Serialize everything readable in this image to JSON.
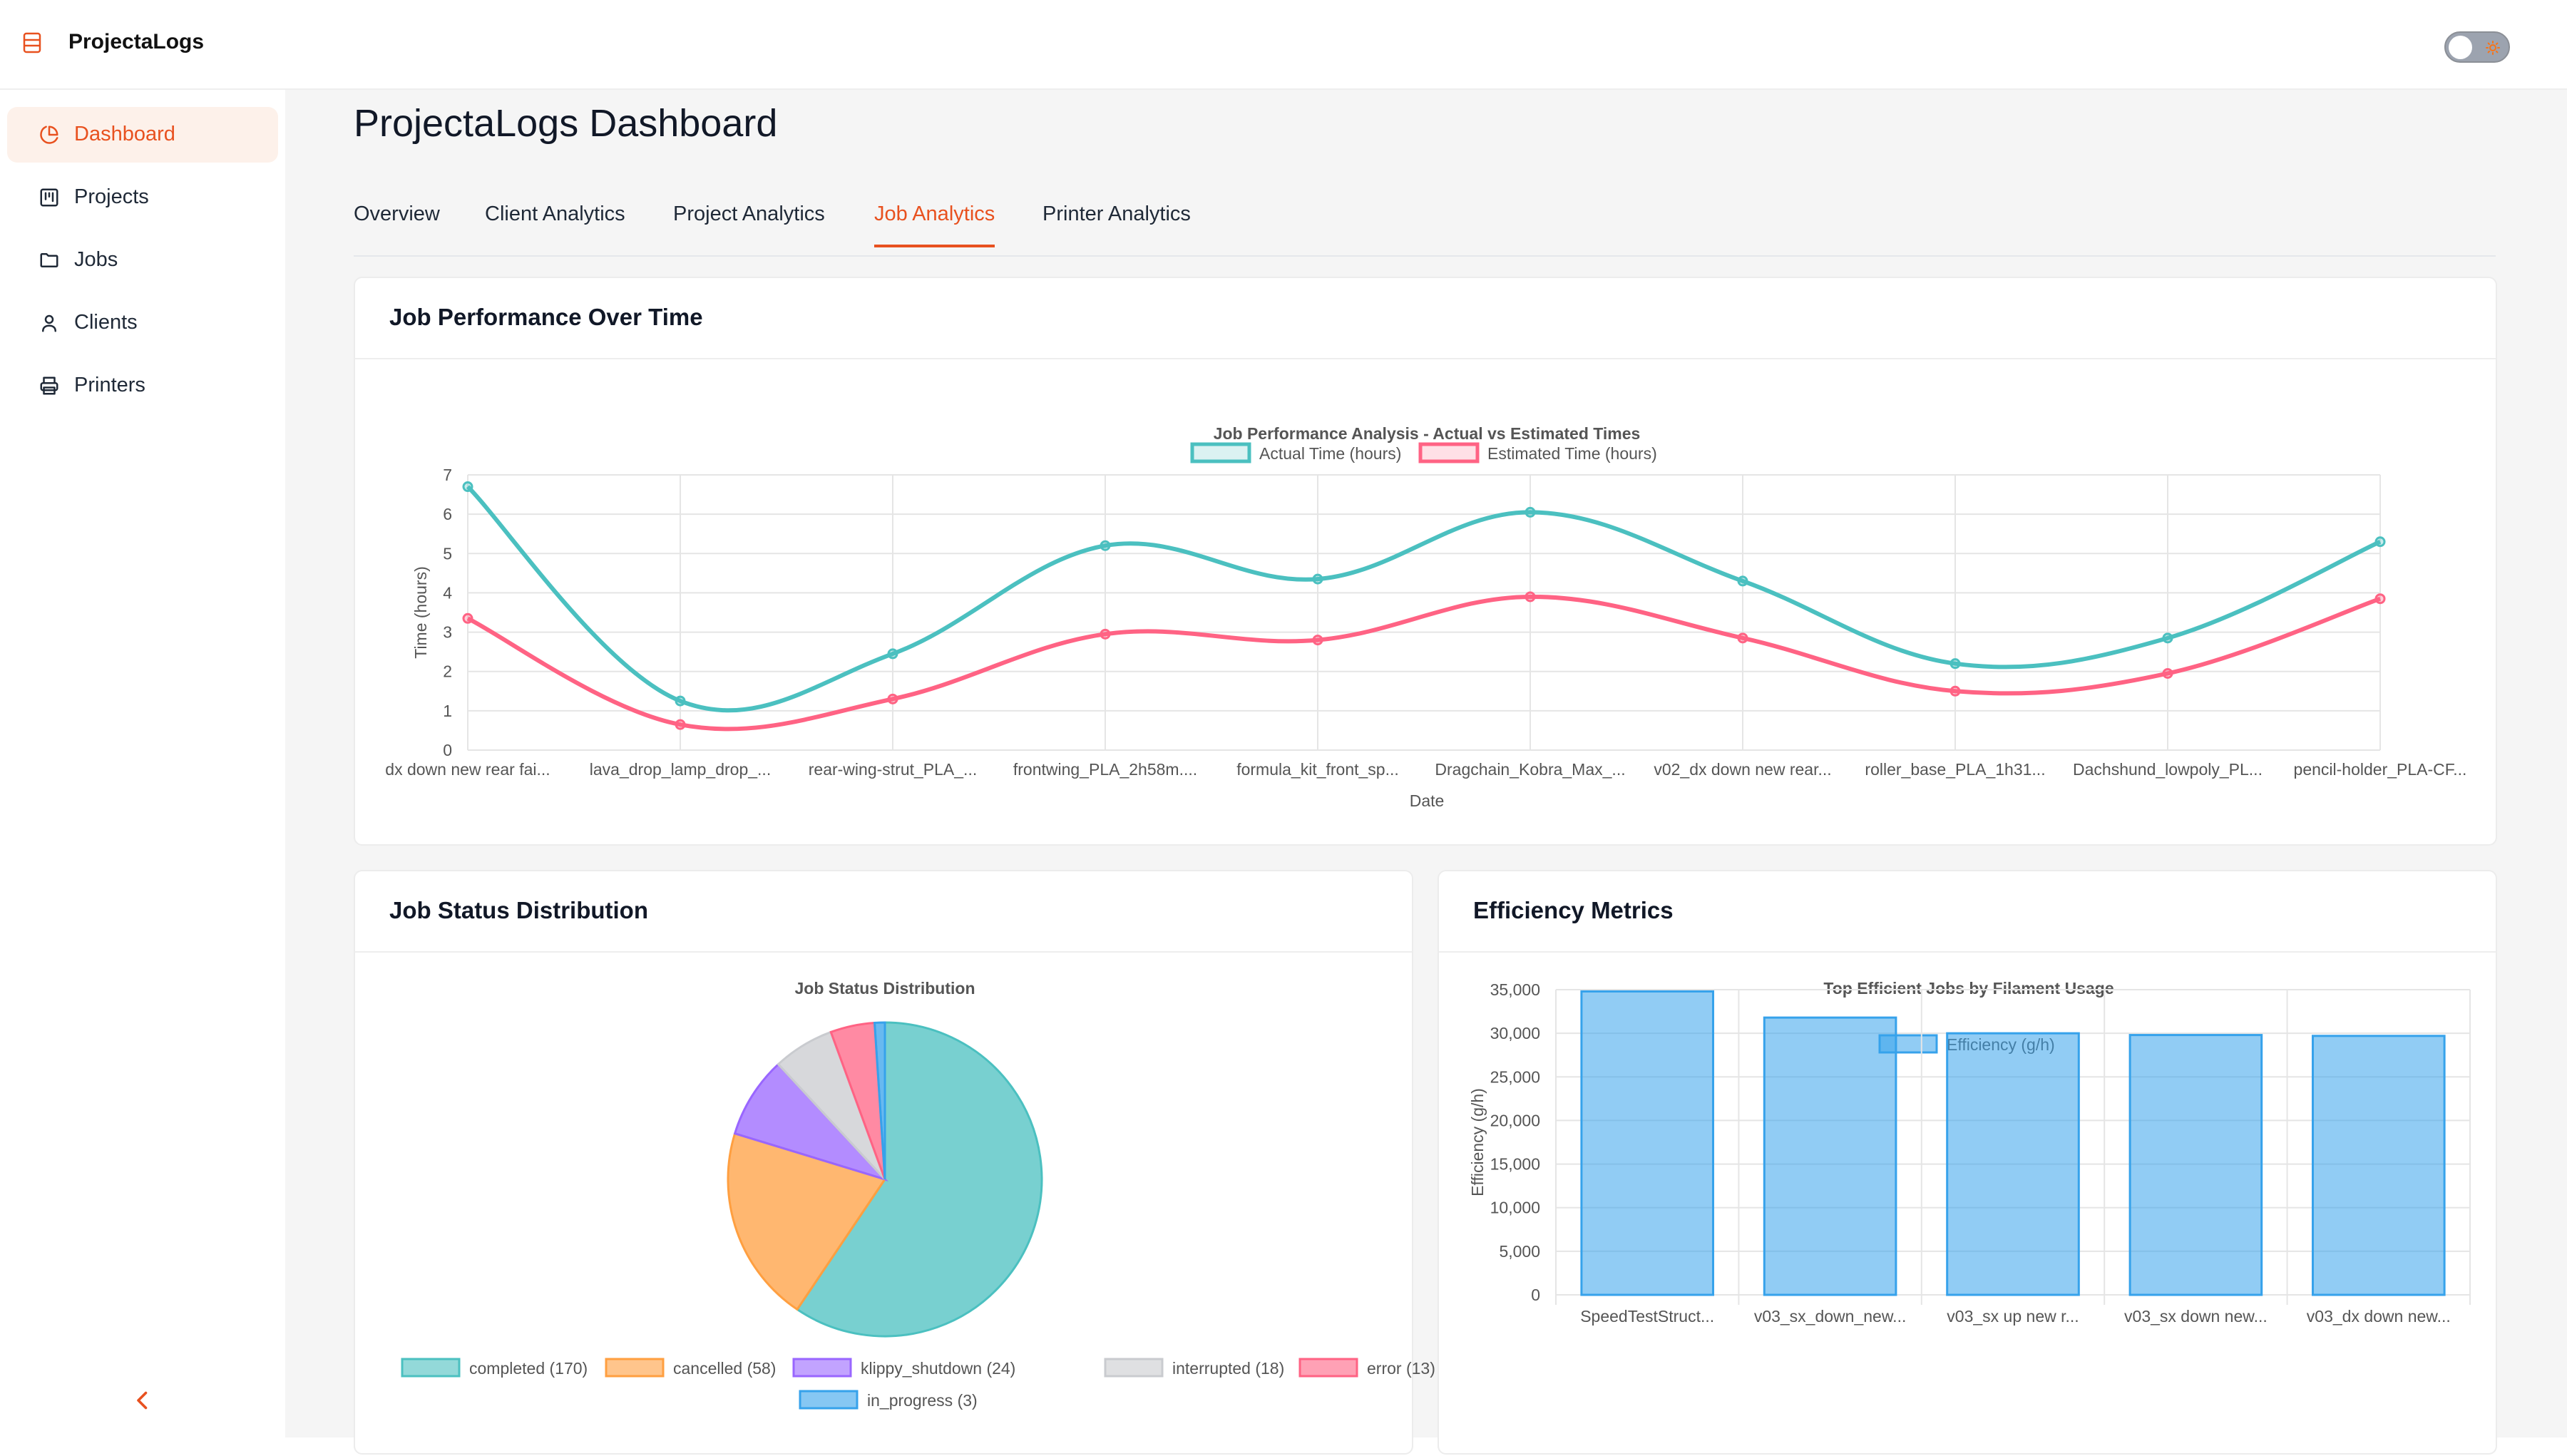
{
  "app": {
    "brand": "ProjectaLogs"
  },
  "sidebar": {
    "items": [
      {
        "label": "Dashboard",
        "icon": "pie-chart-icon",
        "active": true
      },
      {
        "label": "Projects",
        "icon": "kanban-icon",
        "active": false
      },
      {
        "label": "Jobs",
        "icon": "folder-icon",
        "active": false
      },
      {
        "label": "Clients",
        "icon": "user-icon",
        "active": false
      },
      {
        "label": "Printers",
        "icon": "printer-icon",
        "active": false
      }
    ],
    "collapse_icon": "chevron-left-icon"
  },
  "header": {
    "theme_toggle_icon": "sun-icon"
  },
  "main": {
    "title": "ProjectaLogs Dashboard",
    "tabs": [
      {
        "label": "Overview",
        "active": false
      },
      {
        "label": "Client Analytics",
        "active": false
      },
      {
        "label": "Project Analytics",
        "active": false
      },
      {
        "label": "Job Analytics",
        "active": true
      },
      {
        "label": "Printer Analytics",
        "active": false
      }
    ]
  },
  "cards": {
    "performance": {
      "title": "Job Performance Over Time"
    },
    "status": {
      "title": "Job Status Distribution"
    },
    "efficiency": {
      "title": "Efficiency Metrics"
    }
  },
  "colors": {
    "accent": "#e8511f",
    "teal": "#4bc0c0",
    "pink": "#ff6384",
    "orange": "#ff9f40",
    "purple": "#9966ff",
    "grey": "#c9cbcf",
    "blue": "#36a2eb"
  },
  "chart_data": [
    {
      "type": "line",
      "title": "Job Performance Analysis - Actual vs Estimated Times",
      "xlabel": "Date",
      "ylabel": "Time (hours)",
      "ylim": [
        0,
        7
      ],
      "yticks": [
        0,
        1,
        2,
        3,
        4,
        5,
        6,
        7
      ],
      "legend": "top",
      "categories": [
        "dx down new rear fai...",
        "lava_drop_lamp_drop_...",
        "rear-wing-strut_PLA_...",
        "frontwing_PLA_2h58m....",
        "formula_kit_front_sp...",
        "Dragchain_Kobra_Max_...",
        "v02_dx down new rear...",
        "roller_base_PLA_1h31...",
        "Dachshund_lowpoly_PL...",
        "pencil-holder_PLA-CF..."
      ],
      "series": [
        {
          "name": "Actual Time (hours)",
          "values": [
            6.7,
            1.25,
            2.45,
            5.2,
            4.35,
            6.05,
            4.3,
            2.2,
            2.85,
            5.3
          ]
        },
        {
          "name": "Estimated Time (hours)",
          "values": [
            3.35,
            0.65,
            1.3,
            2.95,
            2.8,
            3.9,
            2.85,
            1.5,
            1.95,
            3.85
          ]
        }
      ]
    },
    {
      "type": "pie",
      "title": "Job Status Distribution",
      "legend": "bottom",
      "slices": [
        {
          "label": "completed (170)",
          "value": 170
        },
        {
          "label": "cancelled (58)",
          "value": 58
        },
        {
          "label": "klippy_shutdown (24)",
          "value": 24
        },
        {
          "label": "interrupted (18)",
          "value": 18
        },
        {
          "label": "error (13)",
          "value": 13
        },
        {
          "label": "in_progress (3)",
          "value": 3
        }
      ]
    },
    {
      "type": "bar",
      "title": "Top Efficient Jobs by Filament Usage",
      "ylabel": "Efficiency (g/h)",
      "ylim": [
        0,
        35000
      ],
      "yticks": [
        "0",
        "5,000",
        "10,000",
        "15,000",
        "20,000",
        "25,000",
        "30,000",
        "35,000"
      ],
      "legend": "top",
      "series_name": "Efficiency (g/h)",
      "categories": [
        "SpeedTestStruct...",
        "v03_sx_down_new...",
        "v03_sx up new r...",
        "v03_sx down new...",
        "v03_dx down new..."
      ],
      "values": [
        34800,
        31800,
        30000,
        29800,
        29700
      ]
    }
  ]
}
